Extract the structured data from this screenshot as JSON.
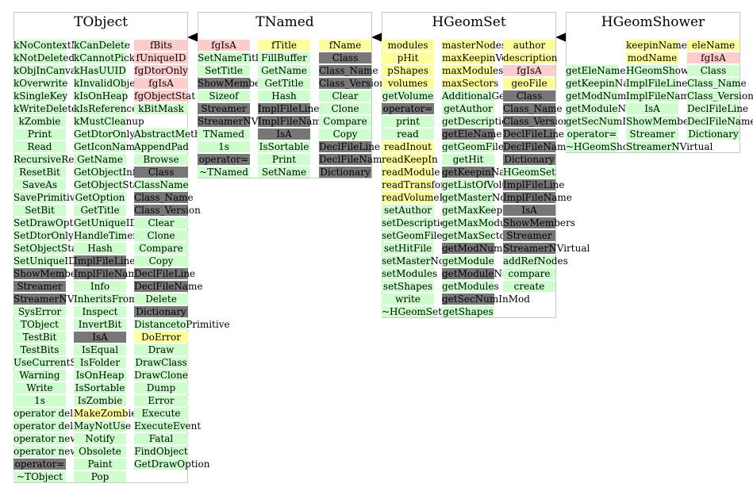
{
  "classes": [
    {
      "key": "tobject",
      "title": "TObject",
      "columns": [
        [
          [
            "kNoContextMenu",
            "g"
          ],
          [
            "kNotDeleted",
            "g"
          ],
          [
            "kObjInCanvas",
            "g"
          ],
          [
            "kOverwrite",
            "g"
          ],
          [
            "kSingleKey",
            "g"
          ],
          [
            "kWriteDelete",
            "g"
          ],
          [
            "kZombie",
            "g"
          ],
          [
            "Print",
            "g"
          ],
          [
            "Read",
            "g"
          ],
          [
            "RecursiveRemove",
            "g"
          ],
          [
            "ResetBit",
            "g"
          ],
          [
            "SaveAs",
            "g"
          ],
          [
            "SavePrimitive",
            "g"
          ],
          [
            "SetBit",
            "g"
          ],
          [
            "SetDrawOption",
            "g"
          ],
          [
            "SetDtorOnly",
            "g"
          ],
          [
            "SetObjectStat",
            "g"
          ],
          [
            "SetUniqueID",
            "g"
          ],
          [
            "ShowMembers",
            "k"
          ],
          [
            "Streamer",
            "k"
          ],
          [
            "StreamerNVirtual",
            "k"
          ],
          [
            "SysError",
            "g"
          ],
          [
            "TObject",
            "g"
          ],
          [
            "TestBit",
            "g"
          ],
          [
            "TestBits",
            "g"
          ],
          [
            "UseCurrentStyle",
            "g"
          ],
          [
            "Warning",
            "g"
          ],
          [
            "Write",
            "g"
          ],
          [
            "1s",
            "g"
          ],
          [
            "operator delete",
            "g"
          ],
          [
            "operator delete[]",
            "g"
          ],
          [
            "operator new",
            "g"
          ],
          [
            "operator new[]",
            "g"
          ],
          [
            "operator=",
            "k"
          ],
          [
            "~TObject",
            "g"
          ]
        ],
        [
          [
            "kCanDelete",
            "g"
          ],
          [
            "kCannotPick",
            "g"
          ],
          [
            "kHasUUID",
            "g"
          ],
          [
            "kInvalidObject",
            "g"
          ],
          [
            "kIsOnHeap",
            "g"
          ],
          [
            "kIsReferenced",
            "g"
          ],
          [
            "kMustCleanup",
            "g"
          ],
          [
            "GetDtorOnly",
            "g"
          ],
          [
            "GetIconName",
            "g"
          ],
          [
            "GetName",
            "g"
          ],
          [
            "GetObjectInfo",
            "g"
          ],
          [
            "GetObjectStat",
            "g"
          ],
          [
            "GetOption",
            "g"
          ],
          [
            "GetTitle",
            "g"
          ],
          [
            "GetUniqueID",
            "g"
          ],
          [
            "HandleTimer",
            "g"
          ],
          [
            "Hash",
            "g"
          ],
          [
            "ImplFileLine",
            "k"
          ],
          [
            "ImplFileName",
            "k"
          ],
          [
            "Info",
            "g"
          ],
          [
            "InheritsFrom",
            "g"
          ],
          [
            "Inspect",
            "g"
          ],
          [
            "InvertBit",
            "g"
          ],
          [
            "IsA",
            "k"
          ],
          [
            "IsEqual",
            "g"
          ],
          [
            "IsFolder",
            "g"
          ],
          [
            "IsOnHeap",
            "g"
          ],
          [
            "IsSortable",
            "g"
          ],
          [
            "IsZombie",
            "g"
          ],
          [
            "MakeZombie",
            "y"
          ],
          [
            "MayNotUse",
            "g"
          ],
          [
            "Notify",
            "g"
          ],
          [
            "Obsolete",
            "g"
          ],
          [
            "Paint",
            "g"
          ],
          [
            "Pop",
            "g"
          ]
        ],
        [
          [
            "fBits",
            "p"
          ],
          [
            "fUniqueID",
            "p"
          ],
          [
            "fgDtorOnly",
            "p"
          ],
          [
            "fgIsA",
            "p"
          ],
          [
            "fgObjectStat",
            "p"
          ],
          [
            "kBitMask",
            "g"
          ],
          [
            "",
            "b"
          ],
          [
            "AbstractMethod",
            "g"
          ],
          [
            "AppendPad",
            "g"
          ],
          [
            "Browse",
            "g"
          ],
          [
            "Class",
            "k"
          ],
          [
            "ClassName",
            "g"
          ],
          [
            "Class_Name",
            "k"
          ],
          [
            "Class_Version",
            "k"
          ],
          [
            "Clear",
            "g"
          ],
          [
            "Clone",
            "g"
          ],
          [
            "Compare",
            "g"
          ],
          [
            "Copy",
            "g"
          ],
          [
            "DeclFileLine",
            "k"
          ],
          [
            "DeclFileName",
            "k"
          ],
          [
            "Delete",
            "g"
          ],
          [
            "Dictionary",
            "k"
          ],
          [
            "DistancetoPrimitive",
            "g"
          ],
          [
            "DoError",
            "y"
          ],
          [
            "Draw",
            "g"
          ],
          [
            "DrawClass",
            "g"
          ],
          [
            "DrawClone",
            "g"
          ],
          [
            "Dump",
            "g"
          ],
          [
            "Error",
            "g"
          ],
          [
            "Execute",
            "g"
          ],
          [
            "ExecuteEvent",
            "g"
          ],
          [
            "Fatal",
            "g"
          ],
          [
            "FindObject",
            "g"
          ],
          [
            "GetDrawOption",
            "g"
          ]
        ]
      ]
    },
    {
      "key": "tnamed",
      "title": "TNamed",
      "columns": [
        [
          [
            "fgIsA",
            "p"
          ],
          [
            "SetNameTitle",
            "g"
          ],
          [
            "SetTitle",
            "g"
          ],
          [
            "ShowMembers",
            "k"
          ],
          [
            "Sizeof",
            "g"
          ],
          [
            "Streamer",
            "k"
          ],
          [
            "StreamerNVirtual",
            "k"
          ],
          [
            "TNamed",
            "g"
          ],
          [
            "1s",
            "g"
          ],
          [
            "operator=",
            "k"
          ],
          [
            "~TNamed",
            "g"
          ]
        ],
        [
          [
            "fTitle",
            "y"
          ],
          [
            "FillBuffer",
            "g"
          ],
          [
            "GetName",
            "g"
          ],
          [
            "GetTitle",
            "g"
          ],
          [
            "Hash",
            "g"
          ],
          [
            "ImplFileLine",
            "k"
          ],
          [
            "ImplFileName",
            "k"
          ],
          [
            "IsA",
            "k"
          ],
          [
            "IsSortable",
            "g"
          ],
          [
            "Print",
            "g"
          ],
          [
            "SetName",
            "g"
          ]
        ],
        [
          [
            "fName",
            "y"
          ],
          [
            "Class",
            "k"
          ],
          [
            "Class_Name",
            "k"
          ],
          [
            "Class_Version",
            "k"
          ],
          [
            "Clear",
            "g"
          ],
          [
            "Clone",
            "g"
          ],
          [
            "Compare",
            "g"
          ],
          [
            "Copy",
            "g"
          ],
          [
            "DeclFileLine",
            "k"
          ],
          [
            "DeclFileName",
            "k"
          ],
          [
            "Dictionary",
            "k"
          ]
        ]
      ]
    },
    {
      "key": "hgeomset",
      "title": "HGeomSet",
      "columns": [
        [
          [
            "modules",
            "y"
          ],
          [
            "pHit",
            "y"
          ],
          [
            "pShapes",
            "y"
          ],
          [
            "volumes",
            "y"
          ],
          [
            "getVolume",
            "g"
          ],
          [
            "operator=",
            "k"
          ],
          [
            "print",
            "g"
          ],
          [
            "read",
            "g"
          ],
          [
            "readInout",
            "y"
          ],
          [
            "readKeepIn",
            "y"
          ],
          [
            "readModule",
            "y"
          ],
          [
            "readTransform",
            "y"
          ],
          [
            "readVolumeParams",
            "y"
          ],
          [
            "setAuthor",
            "g"
          ],
          [
            "setDescription",
            "g"
          ],
          [
            "setGeomFile",
            "g"
          ],
          [
            "setHitFile",
            "g"
          ],
          [
            "setMasterNodes",
            "g"
          ],
          [
            "setModules",
            "g"
          ],
          [
            "setShapes",
            "g"
          ],
          [
            "write",
            "g"
          ],
          [
            "~HGeomSet",
            "g"
          ]
        ],
        [
          [
            "masterNodes",
            "y"
          ],
          [
            "maxKeepinVolumes",
            "y"
          ],
          [
            "maxModules",
            "y"
          ],
          [
            "maxSectors",
            "y"
          ],
          [
            "AdditionalGeometry",
            "g"
          ],
          [
            "getAuthor",
            "g"
          ],
          [
            "getDescription",
            "g"
          ],
          [
            "getEleName",
            "k"
          ],
          [
            "getGeomFile",
            "g"
          ],
          [
            "getHit",
            "g"
          ],
          [
            "getKeepinName",
            "k"
          ],
          [
            "getListOfVolumes",
            "g"
          ],
          [
            "getMasterNodes",
            "g"
          ],
          [
            "getMaxKeepinVolumes",
            "g"
          ],
          [
            "getMaxModules",
            "g"
          ],
          [
            "getMaxSectors",
            "g"
          ],
          [
            "getModNumInMod",
            "k"
          ],
          [
            "getModule",
            "g"
          ],
          [
            "getModuleName",
            "k"
          ],
          [
            "getModules",
            "g"
          ],
          [
            "getSecNumInMod",
            "k"
          ],
          [
            "getShapes",
            "g"
          ]
        ],
        [
          [
            "author",
            "y"
          ],
          [
            "description",
            "y"
          ],
          [
            "fgIsA",
            "p"
          ],
          [
            "geoFile",
            "y"
          ],
          [
            "Class",
            "k"
          ],
          [
            "Class_Name",
            "k"
          ],
          [
            "Class_Version",
            "k"
          ],
          [
            "DeclFileLine",
            "k"
          ],
          [
            "DeclFileName",
            "k"
          ],
          [
            "Dictionary",
            "k"
          ],
          [
            "HGeomSet",
            "g"
          ],
          [
            "ImplFileLine",
            "k"
          ],
          [
            "ImplFileName",
            "k"
          ],
          [
            "IsA",
            "k"
          ],
          [
            "ShowMembers",
            "k"
          ],
          [
            "Streamer",
            "k"
          ],
          [
            "StreamerNVirtual",
            "k"
          ],
          [
            "addRefNodes",
            "g"
          ],
          [
            "compare",
            "g"
          ],
          [
            "create",
            "g"
          ]
        ]
      ]
    },
    {
      "key": "hgeomshower",
      "title": "HGeomShower",
      "columns": [
        [
          [
            "",
            "b"
          ],
          [
            "",
            "b"
          ],
          [
            "getEleName",
            "g"
          ],
          [
            "getKeepinName",
            "g"
          ],
          [
            "getModNumInMod",
            "g"
          ],
          [
            "getModuleName",
            "g"
          ],
          [
            "getSecNumInMod",
            "g"
          ],
          [
            "operator=",
            "g"
          ],
          [
            "~HGeomShower",
            "g"
          ]
        ],
        [
          [
            "keepinName",
            "y"
          ],
          [
            "modName",
            "y"
          ],
          [
            "HGeomShower",
            "g"
          ],
          [
            "ImplFileLine",
            "g"
          ],
          [
            "ImplFileName",
            "g"
          ],
          [
            "IsA",
            "g"
          ],
          [
            "ShowMembers",
            "g"
          ],
          [
            "Streamer",
            "g"
          ],
          [
            "StreamerNVirtual",
            "g"
          ]
        ],
        [
          [
            "eleName",
            "y"
          ],
          [
            "fgIsA",
            "p"
          ],
          [
            "Class",
            "g"
          ],
          [
            "Class_Name",
            "g"
          ],
          [
            "Class_Version",
            "g"
          ],
          [
            "DeclFileLine",
            "g"
          ],
          [
            "DeclFileName",
            "g"
          ],
          [
            "Dictionary",
            "g"
          ]
        ]
      ]
    }
  ],
  "inheritance": [
    {
      "from": "tnamed",
      "to": "tobject"
    },
    {
      "from": "hgeomset",
      "to": "tnamed"
    },
    {
      "from": "hgeomshower",
      "to": "hgeomset"
    }
  ],
  "colors": {
    "g": "#ccffcc",
    "p": "#ffcccc",
    "y": "#ffff99",
    "k": "#777777",
    "border": "#c8c8c8",
    "arrow": "#000000"
  }
}
